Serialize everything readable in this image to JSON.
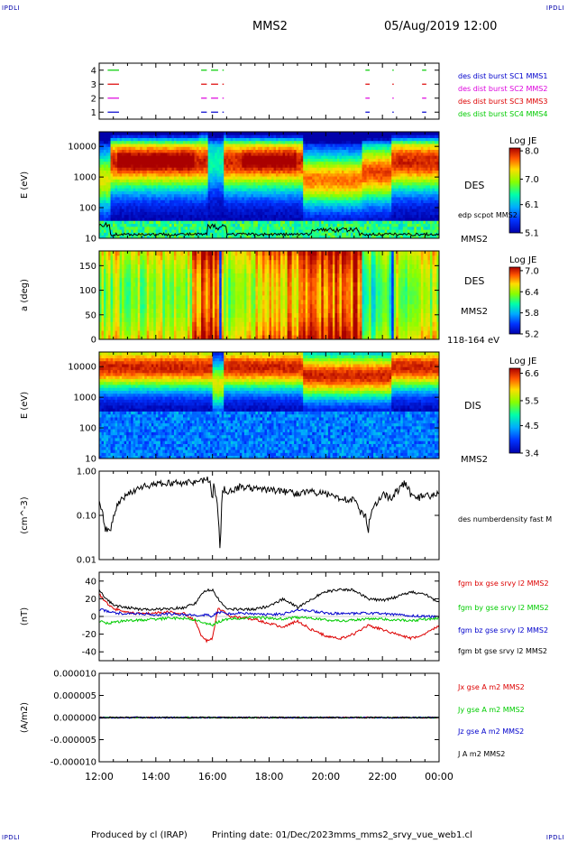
{
  "header": {
    "corner_tag": "IPDLI",
    "spacecraft": "MMS2",
    "date_time": "05/Aug/2019 12:00"
  },
  "footer": {
    "produced_by": "Produced by cl (IRAP)",
    "printing_date": "Printing date: 01/Dec/2023",
    "file_name": "mms_mms2_srvy_vue_web1.cl"
  },
  "colors": {
    "black": "#000000",
    "red": "#dd0000",
    "green": "#00cc00",
    "blue": "#0000cc",
    "magenta": "#dd00dd"
  },
  "chart_data": [
    {
      "id": "burst",
      "type": "scatter",
      "y_ticks": [
        "1",
        "2",
        "3",
        "4"
      ],
      "ylim": [
        0.5,
        4.5
      ],
      "legend": [
        {
          "label": "des dist burst SC1 MMS1",
          "color": "#0000cc"
        },
        {
          "label": "des dist burst SC2 MMS2",
          "color": "#dd00dd"
        },
        {
          "label": "des dist burst SC3 MMS3",
          "color": "#dd0000"
        },
        {
          "label": "des dist burst SC4 MMS4",
          "color": "#00cc00"
        }
      ],
      "segments_hours": [
        [
          12.3,
          12.7
        ],
        [
          15.6,
          15.8
        ],
        [
          15.95,
          16.2
        ],
        [
          16.35,
          16.4
        ],
        [
          21.4,
          21.55
        ],
        [
          22.35,
          22.4
        ],
        [
          23.4,
          23.55
        ]
      ]
    },
    {
      "id": "des_energy",
      "type": "heatmap",
      "ylabel": "E (eV)",
      "y_ticks": [
        "10",
        "100",
        "1000",
        "10000"
      ],
      "ylog": true,
      "ylim": [
        10,
        30000
      ],
      "right_label": "DES",
      "overlay_label": "edp scpot MMS2",
      "sc_label": "MMS2",
      "colorbar": {
        "title": "Log JE",
        "ticks": [
          "8.0",
          "7.0",
          "6.1",
          "5.1"
        ],
        "range": [
          5.1,
          8.1
        ]
      }
    },
    {
      "id": "des_pitch",
      "type": "heatmap",
      "ylabel": "a (deg)",
      "y_ticks": [
        "0",
        "50",
        "100",
        "150"
      ],
      "ylim": [
        0,
        180
      ],
      "right_label": "DES",
      "sc_label": "MMS2",
      "energy_range": "118-164 eV",
      "colorbar": {
        "title": "Log JE",
        "ticks": [
          "7.0",
          "6.4",
          "5.8",
          "5.2"
        ],
        "range": [
          5.2,
          7.1
        ]
      }
    },
    {
      "id": "dis_energy",
      "type": "heatmap",
      "ylabel": "E (eV)",
      "y_ticks": [
        "10",
        "100",
        "1000",
        "10000"
      ],
      "ylog": true,
      "ylim": [
        10,
        30000
      ],
      "right_label": "DIS",
      "sc_label": "MMS2",
      "colorbar": {
        "title": "Log JE",
        "ticks": [
          "6.6",
          "5.5",
          "4.5",
          "3.4"
        ],
        "range": [
          3.4,
          6.8
        ]
      }
    },
    {
      "id": "density",
      "type": "line",
      "ylabel": "(cm^-3)",
      "y_ticks": [
        "0.01",
        "0.10",
        "1.00"
      ],
      "ylog": true,
      "ylim": [
        0.01,
        1.0
      ],
      "legend": [
        {
          "label": "des numberdensity fast M",
          "color": "#000000"
        }
      ],
      "x": [
        12.0,
        12.2,
        12.4,
        12.6,
        13.0,
        13.5,
        14.0,
        14.5,
        15.0,
        15.5,
        15.9,
        16.0,
        16.05,
        16.1,
        16.2,
        16.25,
        16.3,
        16.35,
        16.4,
        16.6,
        17.0,
        17.5,
        18.0,
        18.5,
        19.0,
        19.5,
        20.0,
        20.5,
        21.0,
        21.2,
        21.4,
        21.5,
        21.6,
        21.8,
        22.0,
        22.3,
        22.6,
        22.8,
        23.0,
        23.3,
        23.5,
        23.7,
        24.0
      ],
      "y": [
        0.2,
        0.05,
        0.04,
        0.15,
        0.3,
        0.45,
        0.5,
        0.55,
        0.55,
        0.6,
        0.65,
        0.2,
        0.6,
        0.3,
        0.1,
        0.015,
        0.04,
        0.3,
        0.4,
        0.35,
        0.45,
        0.4,
        0.38,
        0.35,
        0.32,
        0.35,
        0.3,
        0.25,
        0.22,
        0.12,
        0.1,
        0.04,
        0.12,
        0.2,
        0.3,
        0.25,
        0.4,
        0.55,
        0.3,
        0.25,
        0.3,
        0.25,
        0.35
      ]
    },
    {
      "id": "bfield",
      "type": "line",
      "ylabel": "(nT)",
      "y_ticks": [
        "-40",
        "-20",
        "0",
        "20",
        "40"
      ],
      "ylim": [
        -50,
        50
      ],
      "x": [
        12.0,
        12.3,
        12.6,
        13.0,
        13.5,
        14.0,
        14.5,
        15.0,
        15.4,
        15.6,
        15.8,
        16.0,
        16.2,
        16.4,
        16.6,
        17.0,
        17.5,
        18.0,
        18.5,
        19.0,
        19.5,
        20.0,
        20.5,
        21.0,
        21.5,
        22.0,
        22.5,
        23.0,
        23.5,
        24.0
      ],
      "series": [
        {
          "name": "fgm bx gse srvy l2 MMS2",
          "color": "#dd0000",
          "values": [
            25,
            14,
            8,
            4,
            3,
            4,
            5,
            3,
            -5,
            -22,
            -28,
            -25,
            10,
            5,
            0,
            -1,
            -3,
            -8,
            -12,
            -5,
            -15,
            -22,
            -25,
            -20,
            -10,
            -15,
            -20,
            -25,
            -20,
            -10
          ]
        },
        {
          "name": "fgm by gse srvy l2 MMS2",
          "color": "#00cc00",
          "values": [
            -5,
            -8,
            -6,
            -5,
            -4,
            -3,
            -2,
            -2,
            -4,
            -6,
            -8,
            -10,
            -6,
            -4,
            -3,
            -2,
            -1,
            -2,
            -3,
            -1,
            -2,
            -4,
            -5,
            -4,
            -3,
            -3,
            -4,
            -5,
            -3,
            -2
          ]
        },
        {
          "name": "fgm bz gse srvy l2 MMS2",
          "color": "#0000cc",
          "values": [
            8,
            6,
            4,
            3,
            3,
            2,
            3,
            2,
            2,
            1,
            2,
            0,
            5,
            4,
            3,
            4,
            3,
            2,
            3,
            8,
            6,
            4,
            3,
            3,
            4,
            3,
            2,
            1,
            0,
            0
          ]
        },
        {
          "name": "fgm bt gse srvy l2 MMS2",
          "color": "#000000",
          "values": [
            30,
            18,
            12,
            10,
            8,
            8,
            9,
            10,
            15,
            24,
            30,
            30,
            20,
            12,
            8,
            8,
            8,
            12,
            20,
            10,
            20,
            28,
            30,
            30,
            20,
            18,
            22,
            28,
            25,
            15
          ]
        }
      ]
    },
    {
      "id": "current",
      "type": "line",
      "ylabel": "(A/m2)",
      "y_ticks": [
        "-0.000010",
        "-0.000005",
        "0.000000",
        "0.000005",
        "0.000010"
      ],
      "ylim": [
        -1e-05,
        1e-05
      ],
      "x": [
        12.0,
        24.0
      ],
      "series": [
        {
          "name": "Jx gse A m2 MMS2",
          "color": "#dd0000",
          "values": [
            0,
            0
          ]
        },
        {
          "name": "Jy gse A m2 MMS2",
          "color": "#00cc00",
          "values": [
            0,
            0
          ]
        },
        {
          "name": "Jz gse A m2 MMS2",
          "color": "#0000cc",
          "values": [
            0,
            0
          ]
        },
        {
          "name": "J A m2 MMS2",
          "color": "#000000",
          "values": [
            0,
            0
          ]
        }
      ]
    }
  ],
  "x_axis": {
    "range_hours": [
      12,
      24
    ],
    "tick_labels": [
      "12:00",
      "14:00",
      "16:00",
      "18:00",
      "20:00",
      "22:00",
      "00:00"
    ]
  }
}
